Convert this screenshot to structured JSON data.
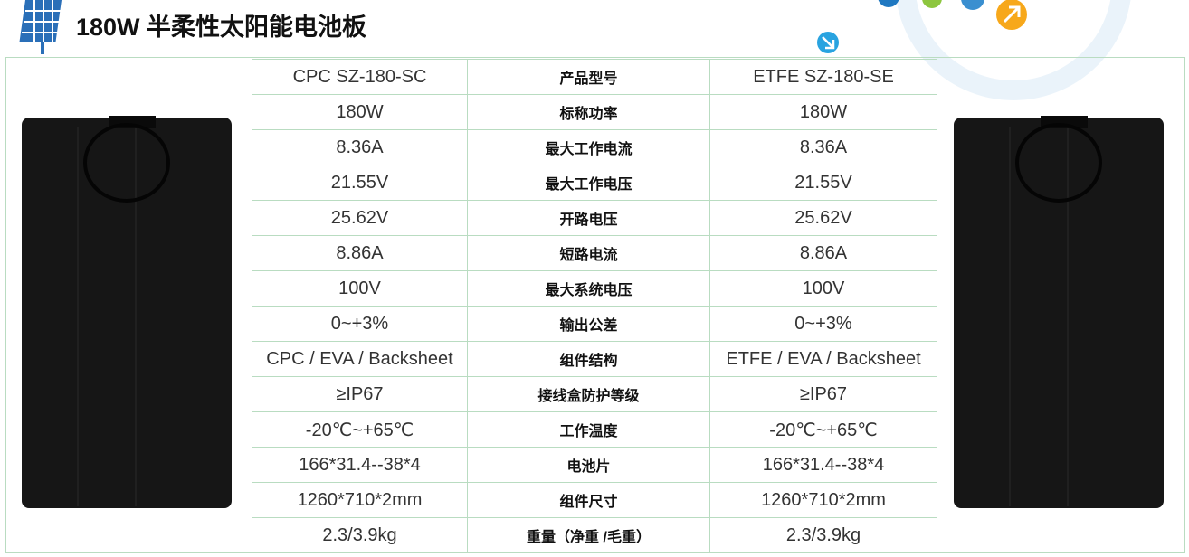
{
  "header": {
    "title": "180W 半柔性太阳能电池板"
  },
  "table": {
    "rows": [
      [
        "CPC  SZ-180-SC",
        "产品型号",
        "ETFE  SZ-180-SE"
      ],
      [
        "180W",
        "标称功率",
        "180W"
      ],
      [
        "8.36A",
        "最大工作电流",
        "8.36A"
      ],
      [
        "21.55V",
        "最大工作电压",
        "21.55V"
      ],
      [
        "25.62V",
        "开路电压",
        "25.62V"
      ],
      [
        "8.86A",
        "短路电流",
        "8.86A"
      ],
      [
        "100V",
        "最大系统电压",
        "100V"
      ],
      [
        "0~+3%",
        "输出公差",
        "0~+3%"
      ],
      [
        "CPC / EVA / Backsheet",
        "组件结构",
        "ETFE / EVA / Backsheet"
      ],
      [
        "≥IP67",
        "接线盒防护等级",
        "≥IP67"
      ],
      [
        "-20℃~+65℃",
        "工作温度",
        "-20℃~+65℃"
      ],
      [
        "166*31.4--38*4",
        "电池片",
        "166*31.4--38*4"
      ],
      [
        "1260*710*2mm",
        "组件尺寸",
        "1260*710*2mm"
      ],
      [
        "2.3/3.9kg",
        "重量（净重 /毛重）",
        "2.3/3.9kg"
      ]
    ]
  }
}
